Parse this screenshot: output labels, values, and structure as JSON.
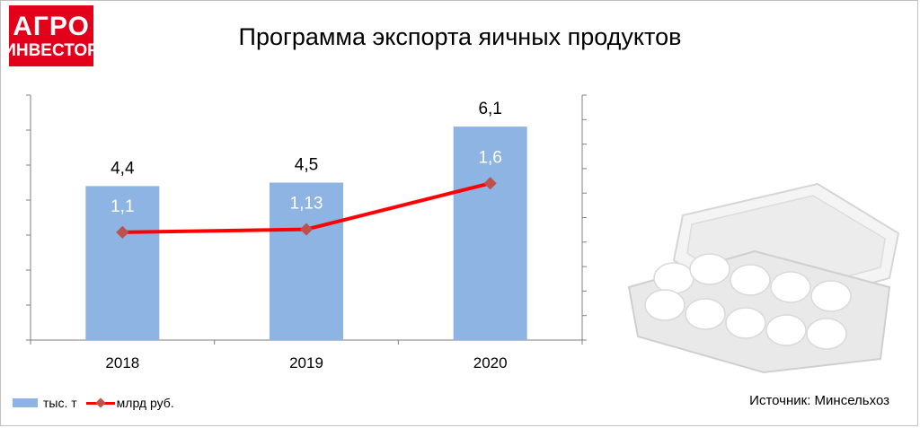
{
  "logo": {
    "line1": "АГРО",
    "line2": "ИНВЕСТОР"
  },
  "title": "Программа экспорта яичных продуктов",
  "source": "Источник: Минсельхоз",
  "colors": {
    "bar": "#8eb4e3",
    "line": "#ff0000",
    "marker": "#c0504d",
    "logo": "#e3001b"
  },
  "legend": {
    "bar_label": "тыс. т",
    "line_label": "млрд руб."
  },
  "chart_data": {
    "type": "bar",
    "categories": [
      "2018",
      "2019",
      "2020"
    ],
    "series": [
      {
        "name": "тыс. т",
        "type": "bar",
        "values": [
          4.4,
          4.5,
          6.1
        ],
        "labels": [
          "4,4",
          "4,5",
          "6,1"
        ]
      },
      {
        "name": "млрд руб.",
        "type": "line",
        "values": [
          1.1,
          1.13,
          1.6
        ],
        "labels": [
          "1,1",
          "1,13",
          "1,6"
        ]
      }
    ],
    "primary_ylim": [
      0,
      7
    ],
    "secondary_ylim": [
      0,
      2.5
    ],
    "grid": false,
    "legend_position": "bottom-left"
  },
  "image": {
    "icon": "egg-carton-photo"
  }
}
